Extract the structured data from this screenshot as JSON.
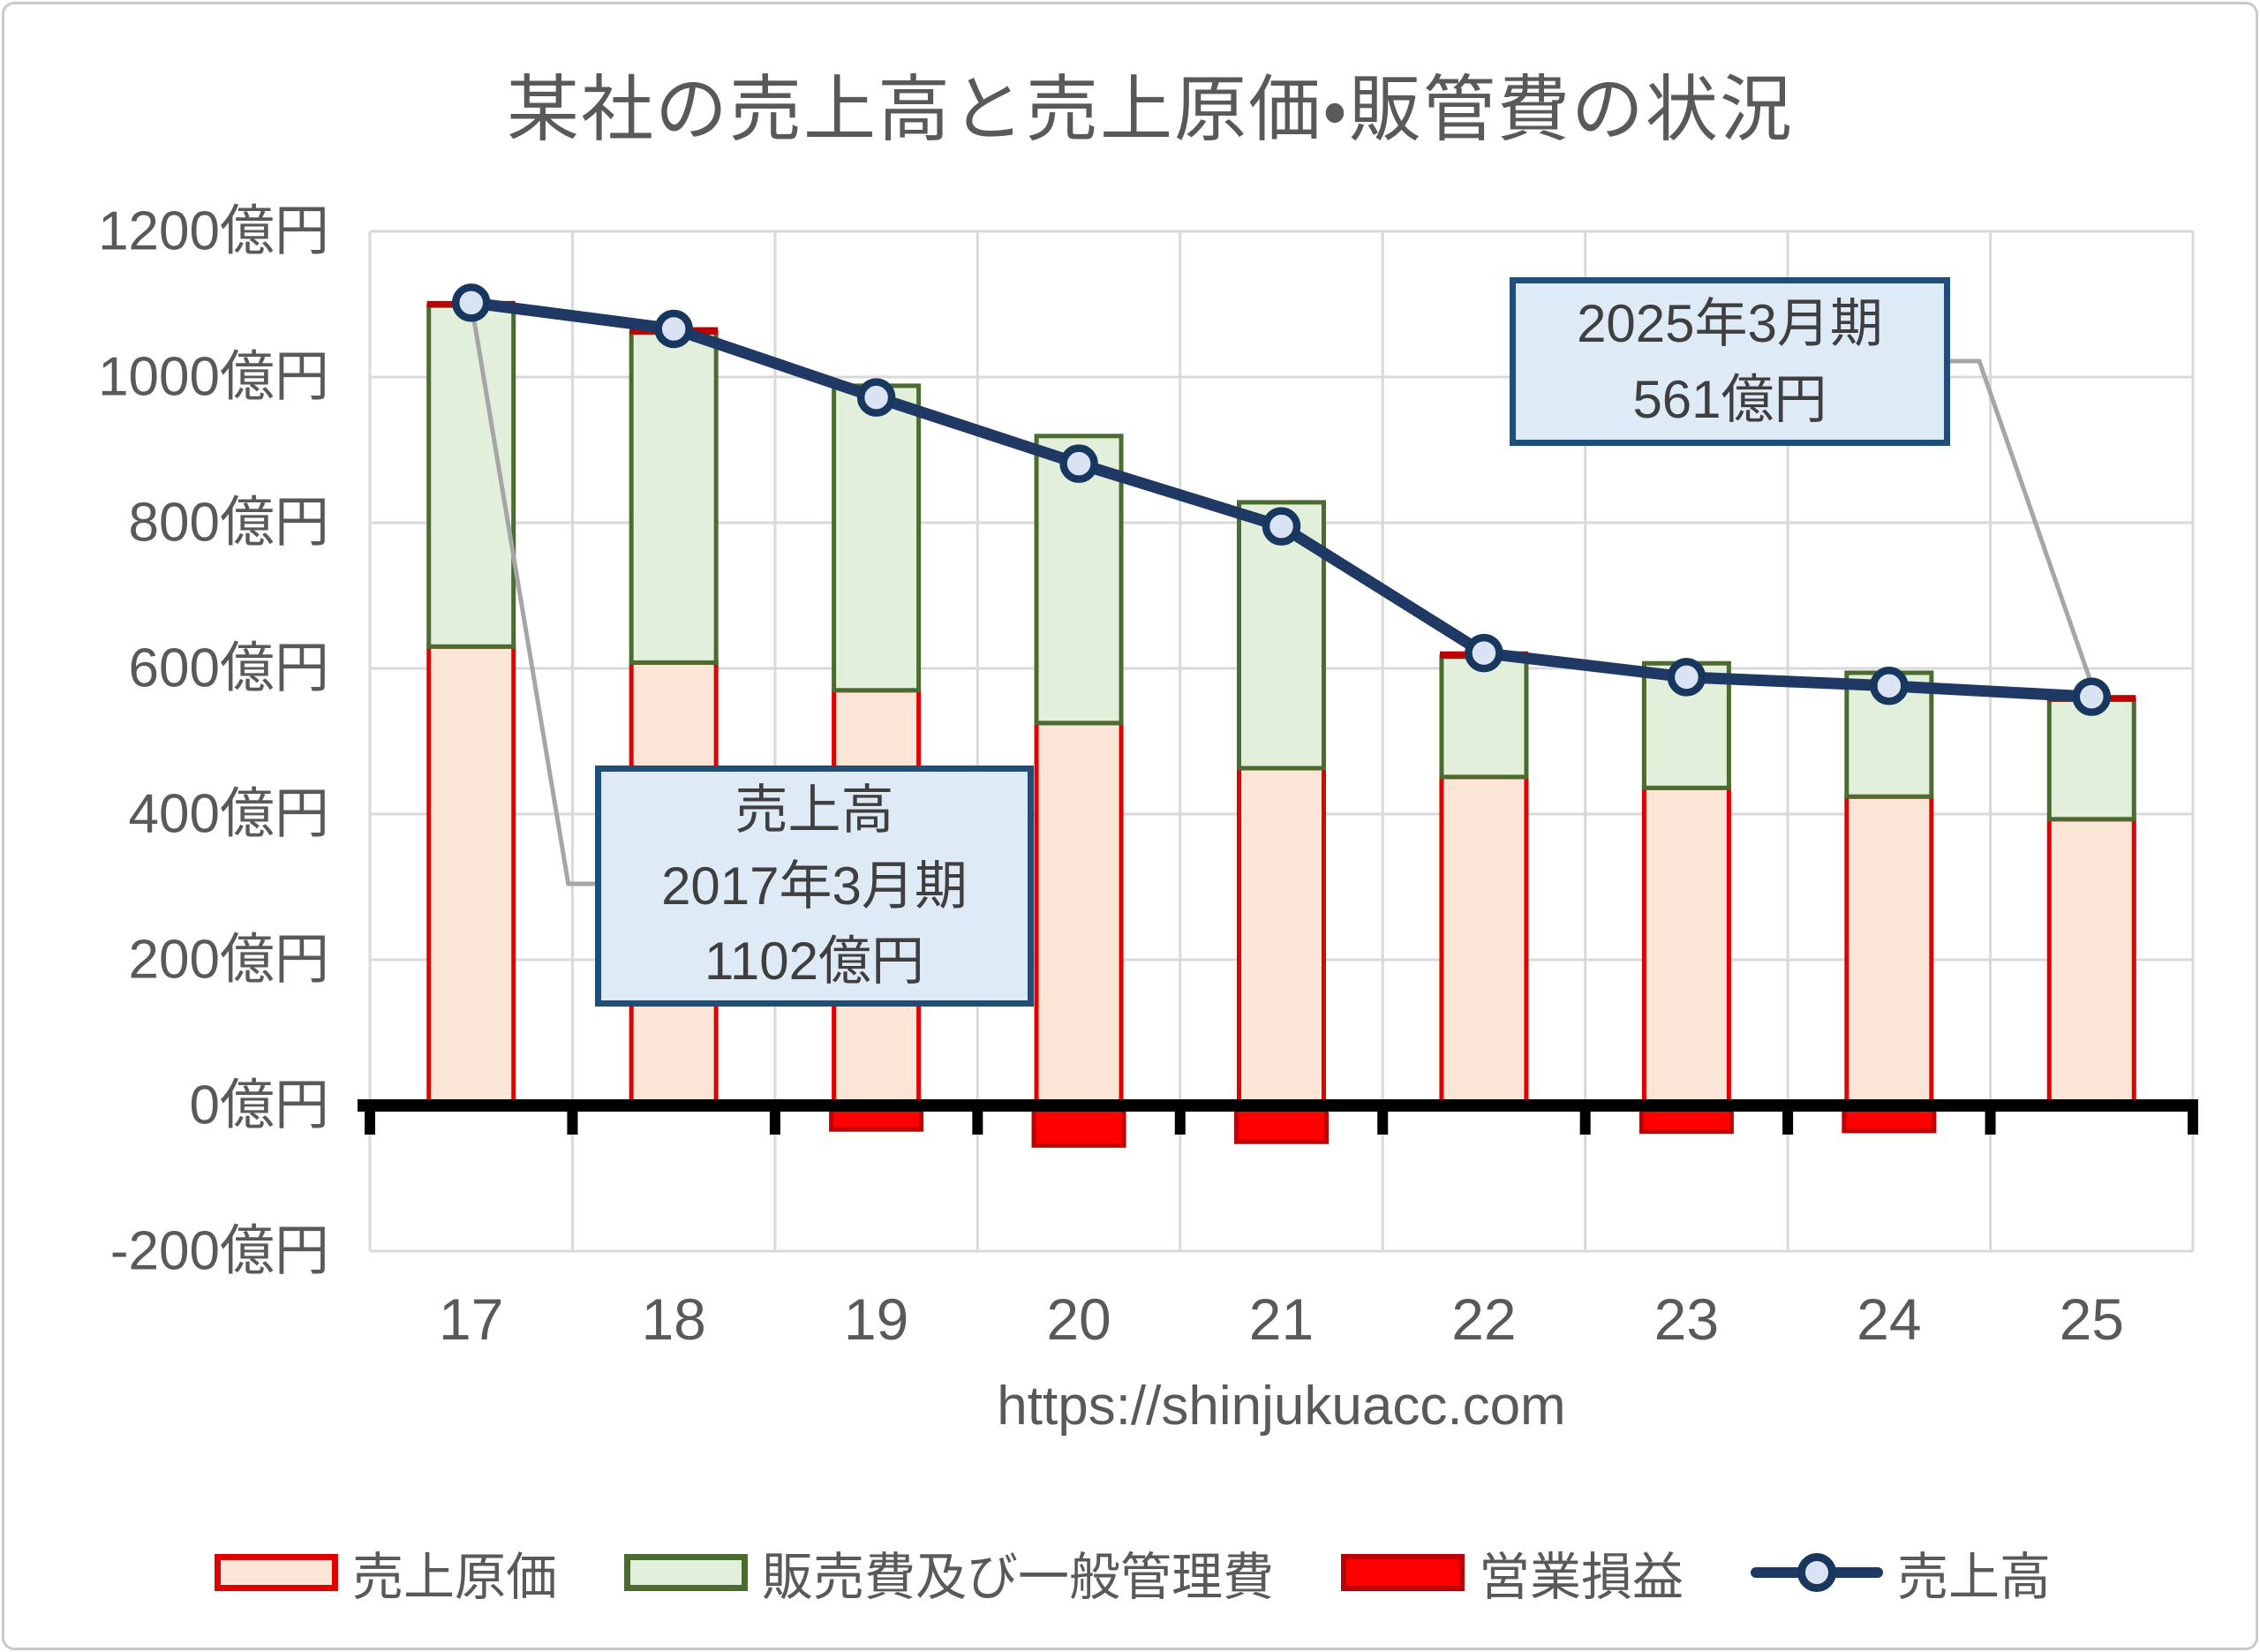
{
  "page": {
    "background": "#FFFFFF",
    "frame_border_color": "#C9C9C9"
  },
  "title": "某社の売上高と売上原価・販管費の状況",
  "url_caption": "https://shinjukuacc.com",
  "palette": {
    "cost_fill": "#FBE5D6",
    "cost_border": "#E00000",
    "sgna_fill": "#E2EFDA",
    "sgna_border": "#4C6B30",
    "op_fill": "#FF0000",
    "op_border": "#C00000",
    "sales_line": "#1F3864",
    "marker_fill": "#DAE3F3",
    "marker_border": "#17375E",
    "gridline": "#D9D9D9",
    "zero_axis": "#000000",
    "leader_line": "#A6A6A6",
    "callout_fill": "#DEEAF6",
    "callout_border": "#1F4E79",
    "text_gray": "#595959"
  },
  "chart_data": {
    "type": "bar",
    "subtype": "stacked-bars-with-line-overlay",
    "unit": "億円",
    "title": "某社の売上高と売上原価・販管費の状況",
    "categories": [
      "17",
      "18",
      "19",
      "20",
      "21",
      "22",
      "23",
      "24",
      "25"
    ],
    "series": [
      {
        "name": "売上原価",
        "role": "stacked-bar",
        "fill": "#FBE5D6",
        "border": "#E00000",
        "values": [
          630,
          608,
          570,
          525,
          463,
          451,
          436,
          424,
          393
        ]
      },
      {
        "name": "販売費及び一般管理費",
        "role": "stacked-bar",
        "fill": "#E2EFDA",
        "border": "#4C6B30",
        "values": [
          468,
          453,
          418,
          394,
          365,
          165,
          171,
          170,
          164
        ]
      },
      {
        "name": "営業損益",
        "role": "stacked-bar-signed",
        "fill": "#FF0000",
        "border": "#C00000",
        "values": [
          4,
          5,
          -16,
          -38,
          -33,
          5,
          -19,
          -18,
          4
        ]
      },
      {
        "name": "売上高",
        "role": "line",
        "color": "#1F3864",
        "marker_fill": "#DAE3F3",
        "values": [
          1102,
          1066,
          972,
          881,
          795,
          621,
          588,
          576,
          561
        ]
      }
    ],
    "y_axis": {
      "min": -200,
      "max": 1200,
      "step": 200,
      "tick_suffix": "億円",
      "tick_labels": [
        "1200億円",
        "1000億円",
        "800億円",
        "600億円",
        "400億円",
        "200億円",
        "0億円",
        "-200億円"
      ]
    },
    "x_axis": {
      "tick_labels": [
        "17",
        "18",
        "19",
        "20",
        "21",
        "22",
        "23",
        "24",
        "25"
      ]
    },
    "grid": true,
    "legend_position": "bottom"
  },
  "annotations": {
    "sales_2017": {
      "lines": [
        "売上高",
        "2017年3月期",
        "1102億円"
      ],
      "target_category": "17",
      "target_value": 1102
    },
    "sales_2025": {
      "lines": [
        "2025年3月期",
        "561億円"
      ],
      "target_category": "25",
      "target_value": 561
    }
  },
  "legend": {
    "items": [
      {
        "label": "売上原価"
      },
      {
        "label": "販売費及び一般管理費"
      },
      {
        "label": "営業損益"
      },
      {
        "label": "売上高"
      }
    ]
  }
}
